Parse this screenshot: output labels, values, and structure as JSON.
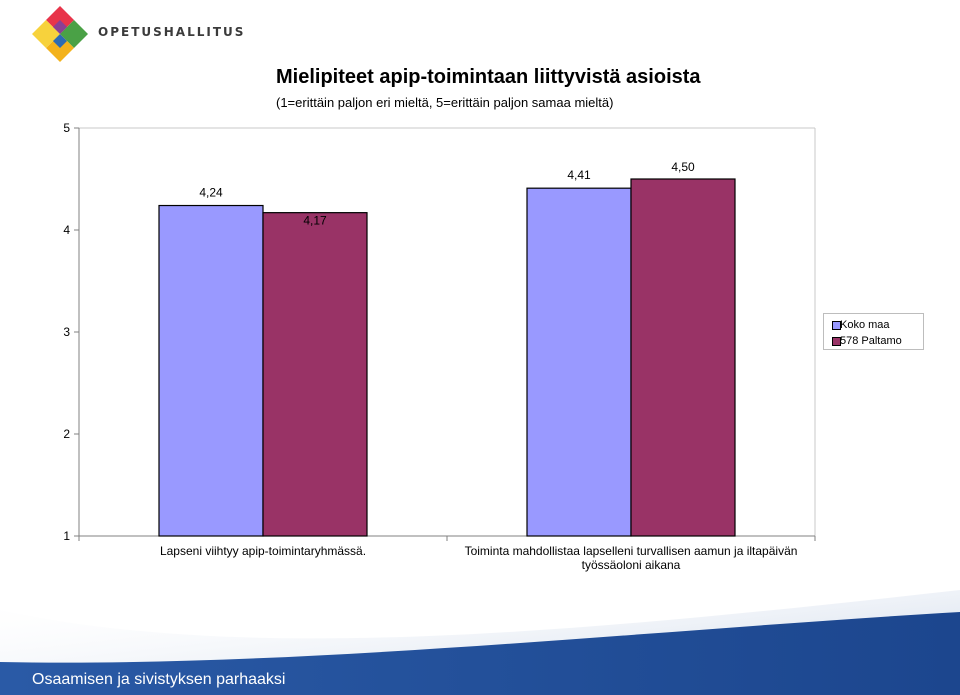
{
  "header": {
    "org_name": "OPETUSHALLITUS"
  },
  "colors": {
    "series1": "#9999ff",
    "series2": "#993366",
    "footer": "#1f4e9a"
  },
  "chart_data": {
    "type": "bar",
    "title": "Mielipiteet apip-toimintaan liittyvistä asioista",
    "subtitle": "(1=erittäin paljon eri mieltä, 5=erittäin paljon samaa mieltä)",
    "categories": [
      "Lapseni viihtyy apip-toimintaryhmässä.",
      "Toiminta mahdollistaa lapselleni turvallisen aamun ja iltapäivän työssäoloni aikana"
    ],
    "series": [
      {
        "name": "Koko maa",
        "values": [
          4.24,
          4.41
        ],
        "labels": [
          "4,24",
          "4,41"
        ]
      },
      {
        "name": "578 Paltamo",
        "values": [
          4.17,
          4.5
        ],
        "labels": [
          "4,17",
          "4,50"
        ]
      }
    ],
    "ylim": [
      1,
      5
    ],
    "yticks": [
      "1",
      "2",
      "3",
      "4",
      "5"
    ],
    "legend_position": "right",
    "grid": false
  },
  "footer": {
    "text": "Osaamisen ja sivistyksen parhaaksi"
  }
}
